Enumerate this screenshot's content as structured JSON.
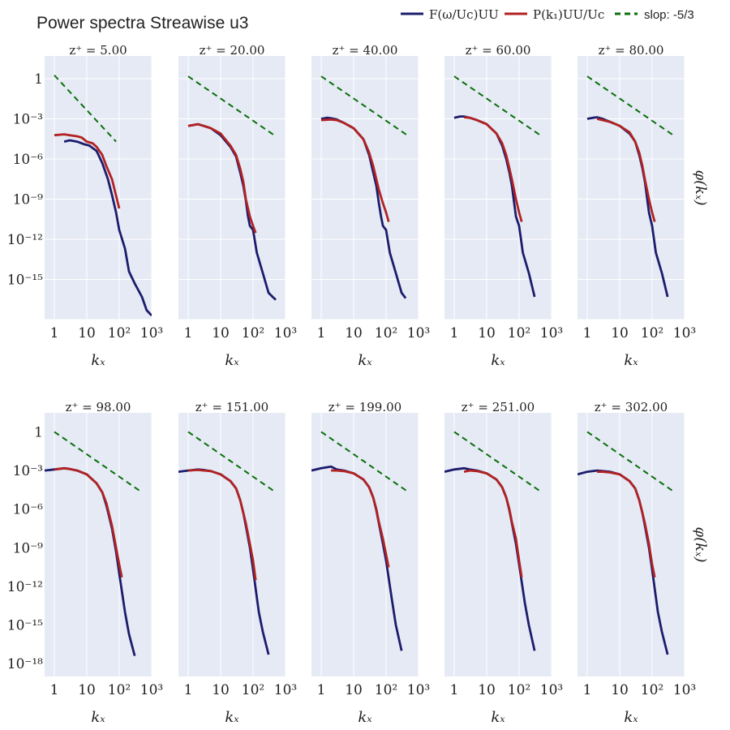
{
  "chart_data": {
    "type": "line",
    "title": "Power spectra Streawise u3",
    "x_scale": "log",
    "y_scale": "log",
    "xlim": [
      1,
      1000
    ],
    "x_tick_labels": [
      "1",
      "10",
      "10²",
      "10³"
    ],
    "xlabel": "kₓ",
    "ylabel": "φ(kₓ)",
    "legend": {
      "placement": "top-right",
      "entries": [
        {
          "label": "F(ω/Uc)UU",
          "color": "#1c1c6c",
          "style": "solid"
        },
        {
          "label": "P(k₁)UU/Uc",
          "color": "#b22222",
          "style": "solid"
        },
        {
          "label": "slop: -5/3",
          "color": "#0a6e0a",
          "style": "dashed"
        }
      ]
    },
    "grid": true,
    "panels": [
      {
        "subtitle": "z⁺ = 5.00",
        "row": 0,
        "ylim": [
          1e-18,
          50
        ],
        "y_ticks": [
          {
            "value": 1,
            "label": "1"
          },
          {
            "value": 0.001,
            "label": "10⁻³"
          },
          {
            "value": 1e-06,
            "label": "10⁻⁶"
          },
          {
            "value": 1e-09,
            "label": "10⁻⁹"
          },
          {
            "value": 1e-12,
            "label": "10⁻¹²"
          },
          {
            "value": 1e-15,
            "label": "10⁻¹⁵"
          }
        ],
        "series": [
          {
            "x": [
              2,
              3,
              5,
              8,
              12,
              20,
              30,
              45,
              60,
              80,
              100,
              150,
              200,
              300,
              500,
              700,
              1000
            ],
            "y": [
              2e-05,
              2.5e-05,
              2e-05,
              1.3e-05,
              1e-05,
              4e-06,
              5e-07,
              3e-08,
              2e-09,
              1e-10,
              5e-12,
              2e-13,
              4e-15,
              5e-16,
              5e-17,
              5e-18,
              2e-18
            ]
          },
          {
            "x": [
              1,
              2,
              3,
              5,
              7,
              10,
              15,
              20,
              30,
              40,
              60,
              100
            ],
            "y": [
              6e-05,
              7e-05,
              6e-05,
              5e-05,
              4e-05,
              2e-05,
              1.5e-05,
              8e-06,
              2e-06,
              3e-07,
              3e-08,
              2e-10
            ]
          },
          {
            "x": [
              1,
              80
            ],
            "y": [
              1.8,
              2e-05
            ]
          }
        ]
      },
      {
        "subtitle": "z⁺ = 20.00",
        "row": 0,
        "ylim": [
          1e-18,
          50
        ],
        "y_ticks": [],
        "series": [
          {
            "x": [
              1,
              2,
              3,
              5,
              10,
              20,
              30,
              40,
              50,
              60,
              70,
              80,
              100,
              130,
              200,
              300,
              400,
              500
            ],
            "y": [
              0.0003,
              0.0004,
              0.0003,
              0.0002,
              6e-05,
              8e-06,
              1.5e-06,
              1e-07,
              1e-08,
              8e-10,
              5e-11,
              1e-11,
              5e-12,
              1e-13,
              3e-15,
              1e-16,
              5e-17,
              3e-17
            ]
          },
          {
            "x": [
              1,
              2,
              3,
              5,
              10,
              20,
              30,
              40,
              50,
              60,
              80,
              100,
              120
            ],
            "y": [
              0.0003,
              0.0004,
              0.0003,
              0.0002,
              8e-05,
              1e-05,
              2e-06,
              2e-07,
              2e-08,
              1e-09,
              5e-11,
              1e-11,
              3e-12
            ]
          },
          {
            "x": [
              1,
              500
            ],
            "y": [
              1.5,
              5e-05
            ]
          }
        ]
      },
      {
        "subtitle": "z⁺ = 40.00",
        "row": 0,
        "ylim": [
          1e-18,
          50
        ],
        "y_ticks": [],
        "series": [
          {
            "x": [
              1,
              1.5,
              2,
              3,
              5,
              10,
              20,
              30,
              40,
              50,
              60,
              70,
              80,
              100,
              130,
              200,
              300,
              400
            ],
            "y": [
              0.001,
              0.0012,
              0.0011,
              0.0009,
              0.0005,
              0.0002,
              3e-05,
              2e-06,
              1e-07,
              1e-08,
              5e-10,
              5e-11,
              1e-11,
              5e-12,
              1e-13,
              3e-15,
              1e-16,
              4e-17
            ]
          },
          {
            "x": [
              1,
              2,
              3,
              5,
              10,
              20,
              30,
              40,
              50,
              60,
              80,
              100,
              120
            ],
            "y": [
              0.0008,
              0.0009,
              0.0008,
              0.0005,
              0.0002,
              3e-05,
              3e-06,
              3e-07,
              3e-08,
              5e-09,
              5e-10,
              1e-10,
              2e-11
            ]
          },
          {
            "x": [
              1,
              500
            ],
            "y": [
              1.5,
              5e-05
            ]
          }
        ]
      },
      {
        "subtitle": "z⁺ = 60.00",
        "row": 0,
        "ylim": [
          1e-18,
          50
        ],
        "y_ticks": [],
        "series": [
          {
            "x": [
              1,
              1.5,
              2,
              3,
              5,
              10,
              20,
              30,
              40,
              50,
              60,
              80,
              100,
              130,
              200,
              300
            ],
            "y": [
              0.0012,
              0.0015,
              0.0015,
              0.0012,
              0.0008,
              0.0004,
              8e-05,
              1e-05,
              1e-06,
              1e-07,
              1e-08,
              5e-11,
              1e-11,
              1e-13,
              3e-15,
              5e-17
            ]
          },
          {
            "x": [
              2,
              3,
              5,
              10,
              20,
              30,
              40,
              50,
              60,
              80,
              100,
              120
            ],
            "y": [
              0.0013,
              0.0012,
              0.0008,
              0.0004,
              8e-05,
              1.5e-05,
              2e-06,
              2e-07,
              3e-08,
              1e-09,
              1e-10,
              2e-11
            ]
          },
          {
            "x": [
              1,
              500
            ],
            "y": [
              1.5,
              5e-05
            ]
          }
        ]
      },
      {
        "subtitle": "z⁺ = 80.00",
        "row": 0,
        "ylim": [
          1e-18,
          50
        ],
        "y_ticks": [],
        "series": [
          {
            "x": [
              1,
              1.5,
              2,
              3,
              5,
              10,
              20,
              30,
              40,
              50,
              60,
              80,
              100,
              130,
              200,
              300
            ],
            "y": [
              0.001,
              0.0012,
              0.0013,
              0.001,
              0.0006,
              0.0003,
              8e-05,
              2e-05,
              2e-06,
              2e-07,
              2e-08,
              1e-10,
              1e-11,
              1e-13,
              3e-15,
              5e-17
            ]
          },
          {
            "x": [
              2,
              3,
              5,
              10,
              20,
              30,
              40,
              50,
              60,
              80,
              100,
              120
            ],
            "y": [
              0.001,
              0.0008,
              0.0006,
              0.0003,
              0.0001,
              2e-05,
              3e-06,
              3e-07,
              3e-08,
              1e-09,
              1e-10,
              2e-11
            ]
          },
          {
            "x": [
              1,
              500
            ],
            "y": [
              1.5,
              5e-05
            ]
          }
        ]
      },
      {
        "subtitle": "z⁺ = 98.00",
        "row": 1,
        "ylim": [
          1e-19,
          30
        ],
        "y_ticks": [
          {
            "value": 1,
            "label": "1"
          },
          {
            "value": 0.001,
            "label": "10⁻³"
          },
          {
            "value": 1e-06,
            "label": "10⁻⁶"
          },
          {
            "value": 1e-09,
            "label": "10⁻⁹"
          },
          {
            "value": 1e-12,
            "label": "10⁻¹²"
          },
          {
            "value": 1e-15,
            "label": "10⁻¹⁵"
          },
          {
            "value": 1e-18,
            "label": "10⁻¹⁸"
          }
        ],
        "series": [
          {
            "x": [
              0.5,
              1,
              2,
              3,
              5,
              10,
              20,
              30,
              40,
              50,
              60,
              80,
              100,
              150,
              200,
              300
            ],
            "y": [
              0.001,
              0.0012,
              0.0015,
              0.0013,
              0.001,
              0.0005,
              0.0001,
              2e-05,
              2e-06,
              2e-07,
              3e-08,
              5e-10,
              1e-11,
              1e-14,
              2e-16,
              4e-18
            ]
          },
          {
            "x": [
              1,
              2,
              3,
              5,
              10,
              20,
              30,
              40,
              50,
              60,
              80,
              100,
              120
            ],
            "y": [
              0.0012,
              0.0015,
              0.0013,
              0.001,
              0.0005,
              0.0001,
              2e-05,
              3e-06,
              3e-07,
              5e-08,
              1e-09,
              5e-11,
              5e-12
            ]
          },
          {
            "x": [
              1,
              500
            ],
            "y": [
              1,
              2e-05
            ]
          }
        ]
      },
      {
        "subtitle": "z⁺ = 151.00",
        "row": 1,
        "ylim": [
          1e-19,
          30
        ],
        "y_ticks": [],
        "series": [
          {
            "x": [
              0.5,
              1,
              2,
              3,
              5,
              10,
              20,
              30,
              40,
              50,
              60,
              80,
              100,
              150,
              200,
              300
            ],
            "y": [
              0.0008,
              0.001,
              0.0012,
              0.0011,
              0.0009,
              0.0005,
              0.00015,
              4e-05,
              5e-06,
              5e-07,
              5e-08,
              1e-09,
              2e-11,
              1e-14,
              3e-16,
              5e-18
            ]
          },
          {
            "x": [
              1,
              2,
              3,
              5,
              10,
              20,
              30,
              40,
              50,
              60,
              80,
              100,
              120
            ],
            "y": [
              0.001,
              0.0011,
              0.001,
              0.0009,
              0.0005,
              0.00015,
              4e-05,
              5e-06,
              5e-07,
              8e-08,
              2e-09,
              1e-10,
              3e-12
            ]
          },
          {
            "x": [
              1,
              500
            ],
            "y": [
              1,
              2e-05
            ]
          }
        ]
      },
      {
        "subtitle": "z⁺ = 199.00",
        "row": 1,
        "ylim": [
          1e-19,
          30
        ],
        "y_ticks": [],
        "series": [
          {
            "x": [
              0.5,
              1,
              2,
              3,
              5,
              10,
              20,
              30,
              40,
              50,
              60,
              80,
              100,
              150,
              200,
              300
            ],
            "y": [
              0.001,
              0.0015,
              0.002,
              0.0012,
              0.001,
              0.0006,
              0.0002,
              5e-05,
              8e-06,
              8e-07,
              8e-08,
              2e-09,
              1e-10,
              1e-13,
              1e-15,
              1e-17
            ]
          },
          {
            "x": [
              2,
              3,
              5,
              10,
              20,
              30,
              40,
              50,
              60,
              80,
              100,
              120
            ],
            "y": [
              0.001,
              0.001,
              0.0009,
              0.0006,
              0.0002,
              5e-05,
              8e-06,
              1e-06,
              1e-07,
              5e-09,
              3e-10,
              3e-11
            ]
          },
          {
            "x": [
              1,
              500
            ],
            "y": [
              1,
              2e-05
            ]
          }
        ]
      },
      {
        "subtitle": "z⁺ = 251.00",
        "row": 1,
        "ylim": [
          1e-19,
          30
        ],
        "y_ticks": [],
        "series": [
          {
            "x": [
              0.5,
              1,
              2,
              3,
              5,
              10,
              20,
              30,
              40,
              50,
              60,
              80,
              100,
              150,
              200,
              300
            ],
            "y": [
              0.0008,
              0.0012,
              0.0015,
              0.0012,
              0.001,
              0.0006,
              0.0002,
              5e-05,
              8e-06,
              8e-07,
              8e-08,
              2e-09,
              5e-11,
              5e-14,
              1e-15,
              1e-17
            ]
          },
          {
            "x": [
              2,
              3,
              5,
              10,
              20,
              30,
              40,
              50,
              60,
              80,
              100,
              120
            ],
            "y": [
              0.0008,
              0.001,
              0.0009,
              0.0006,
              0.0002,
              5e-05,
              8e-06,
              1e-06,
              1e-07,
              5e-09,
              1e-10,
              5e-12
            ]
          },
          {
            "x": [
              1,
              500
            ],
            "y": [
              1,
              2e-05
            ]
          }
        ]
      },
      {
        "subtitle": "z⁺ = 302.00",
        "row": 1,
        "ylim": [
          1e-19,
          30
        ],
        "y_ticks": [],
        "series": [
          {
            "x": [
              0.5,
              1,
              2,
              3,
              5,
              10,
              20,
              30,
              40,
              50,
              60,
              80,
              100,
              150,
              200,
              300
            ],
            "y": [
              0.0005,
              0.0008,
              0.001,
              0.0009,
              0.0008,
              0.0005,
              0.00015,
              4e-05,
              5e-06,
              5e-07,
              5e-08,
              1e-09,
              2e-11,
              1e-14,
              3e-16,
              5e-18
            ]
          },
          {
            "x": [
              2,
              3,
              5,
              10,
              20,
              30,
              40,
              50,
              60,
              80,
              100,
              120
            ],
            "y": [
              0.0008,
              0.0008,
              0.0007,
              0.0005,
              0.00015,
              4e-05,
              5e-06,
              5e-07,
              8e-08,
              2e-09,
              5e-11,
              5e-12
            ]
          },
          {
            "x": [
              1,
              500
            ],
            "y": [
              1,
              2e-05
            ]
          }
        ]
      }
    ]
  }
}
